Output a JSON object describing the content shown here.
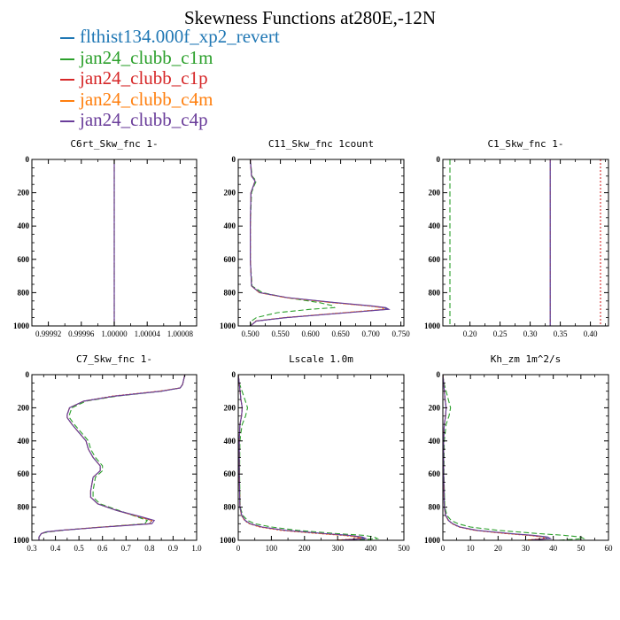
{
  "title": "Skewness Functions at280E,-12N",
  "legend": [
    {
      "name": "flthist134.000f_xp2_revert",
      "color": "#1f77b4"
    },
    {
      "name": "jan24_clubb_c1m",
      "color": "#2ca02c"
    },
    {
      "name": "jan24_clubb_c1p",
      "color": "#d62728"
    },
    {
      "name": "jan24_clubb_c4m",
      "color": "#ff7f0e"
    },
    {
      "name": "jan24_clubb_c4p",
      "color": "#6a3d9a"
    }
  ],
  "chart_data": [
    {
      "type": "line",
      "title": "C6rt_Skw_fnc   1-",
      "xlim": [
        0.9999,
        1.0001
      ],
      "xticks": [
        "0.99992",
        "0.99996",
        "1.00000",
        "1.00004",
        "1.00008"
      ],
      "xtick_values": [
        0.99992,
        0.99996,
        1.0,
        1.00004,
        1.00008
      ],
      "ylim": [
        0,
        1000
      ],
      "y_reversed": true,
      "yticks": [
        0,
        200,
        400,
        600,
        800,
        1000
      ],
      "y": [
        0,
        1000
      ],
      "series": [
        {
          "values": [
            1.0,
            1.0
          ]
        },
        {
          "values": [
            1.0,
            1.0
          ]
        },
        {
          "values": [
            1.0,
            1.0
          ]
        },
        {
          "values": [
            1.0,
            1.0
          ]
        },
        {
          "values": [
            1.0,
            1.0
          ]
        }
      ]
    },
    {
      "type": "line",
      "title": "C11_Skw_fnc   1count",
      "xlim": [
        0.48,
        0.755
      ],
      "xticks": [
        "0.500",
        "0.550",
        "0.600",
        "0.650",
        "0.700",
        "0.750"
      ],
      "xtick_values": [
        0.5,
        0.55,
        0.6,
        0.65,
        0.7,
        0.75
      ],
      "ylim": [
        0,
        1000
      ],
      "y_reversed": true,
      "yticks": [
        0,
        200,
        400,
        600,
        800,
        1000
      ],
      "y": [
        0,
        100,
        130,
        160,
        200,
        400,
        600,
        760,
        800,
        830,
        860,
        880,
        890,
        900,
        920,
        950,
        970,
        1000
      ],
      "series": [
        {
          "values": [
            0.5,
            0.502,
            0.508,
            0.505,
            0.501,
            0.5,
            0.5,
            0.502,
            0.515,
            0.56,
            0.64,
            0.7,
            0.722,
            0.728,
            0.66,
            0.56,
            0.51,
            0.5
          ]
        },
        {
          "values": [
            0.5,
            0.503,
            0.51,
            0.506,
            0.502,
            0.5,
            0.5,
            0.503,
            0.52,
            0.56,
            0.615,
            0.638,
            0.64,
            0.6,
            0.545,
            0.51,
            0.502,
            0.5
          ]
        },
        {
          "values": [
            0.5,
            0.502,
            0.508,
            0.505,
            0.501,
            0.5,
            0.5,
            0.502,
            0.515,
            0.56,
            0.638,
            0.698,
            0.72,
            0.725,
            0.658,
            0.558,
            0.51,
            0.5
          ]
        },
        {
          "values": [
            0.5,
            0.502,
            0.508,
            0.505,
            0.501,
            0.5,
            0.5,
            0.502,
            0.515,
            0.558,
            0.635,
            0.696,
            0.718,
            0.722,
            0.655,
            0.556,
            0.509,
            0.5
          ]
        },
        {
          "values": [
            0.5,
            0.502,
            0.508,
            0.505,
            0.501,
            0.5,
            0.5,
            0.502,
            0.516,
            0.562,
            0.642,
            0.703,
            0.725,
            0.73,
            0.662,
            0.56,
            0.51,
            0.5
          ]
        }
      ]
    },
    {
      "type": "line",
      "title": "C1_Skw_fnc   1-",
      "xlim": [
        0.155,
        0.43
      ],
      "xticks": [
        "0.20",
        "0.25",
        "0.30",
        "0.35",
        "0.40"
      ],
      "xtick_values": [
        0.2,
        0.25,
        0.3,
        0.35,
        0.4
      ],
      "ylim": [
        0,
        1000
      ],
      "y_reversed": true,
      "yticks": [
        0,
        200,
        400,
        600,
        800,
        1000
      ],
      "y": [
        0,
        1000
      ],
      "series": [
        {
          "values": [
            0.3333,
            0.3333
          ]
        },
        {
          "values": [
            0.1667,
            0.1667
          ]
        },
        {
          "values": [
            0.4167,
            0.4167
          ]
        },
        {
          "values": [
            0.3333,
            0.3333
          ]
        },
        {
          "values": [
            0.3333,
            0.3333
          ]
        }
      ]
    },
    {
      "type": "line",
      "title": "C7_Skw_fnc   1-",
      "xlim": [
        0.3,
        1.0
      ],
      "xticks": [
        "0.3",
        "0.4",
        "0.5",
        "0.6",
        "0.7",
        "0.8",
        "0.9",
        "1.0"
      ],
      "xtick_values": [
        0.3,
        0.4,
        0.5,
        0.6,
        0.7,
        0.8,
        0.9,
        1.0
      ],
      "ylim": [
        0,
        1000
      ],
      "y_reversed": true,
      "yticks": [
        0,
        200,
        400,
        600,
        800,
        1000
      ],
      "y": [
        0,
        60,
        80,
        100,
        130,
        160,
        200,
        240,
        260,
        300,
        350,
        400,
        450,
        500,
        550,
        580,
        620,
        700,
        740,
        780,
        820,
        860,
        880,
        900,
        920,
        940,
        950,
        960,
        980,
        1000
      ],
      "series": [
        {
          "values": [
            0.95,
            0.94,
            0.93,
            0.85,
            0.65,
            0.52,
            0.46,
            0.45,
            0.45,
            0.47,
            0.5,
            0.53,
            0.54,
            0.56,
            0.59,
            0.59,
            0.56,
            0.55,
            0.55,
            0.58,
            0.66,
            0.76,
            0.81,
            0.8,
            0.6,
            0.42,
            0.36,
            0.34,
            0.33,
            0.33
          ]
        },
        {
          "values": [
            0.95,
            0.94,
            0.93,
            0.85,
            0.66,
            0.53,
            0.47,
            0.46,
            0.46,
            0.48,
            0.51,
            0.54,
            0.55,
            0.57,
            0.6,
            0.6,
            0.57,
            0.56,
            0.56,
            0.59,
            0.67,
            0.75,
            0.79,
            0.78,
            0.6,
            0.43,
            0.37,
            0.34,
            0.33,
            0.33
          ]
        },
        {
          "values": [
            0.95,
            0.94,
            0.93,
            0.84,
            0.64,
            0.52,
            0.46,
            0.45,
            0.45,
            0.47,
            0.5,
            0.53,
            0.54,
            0.56,
            0.59,
            0.59,
            0.56,
            0.55,
            0.55,
            0.58,
            0.66,
            0.76,
            0.81,
            0.8,
            0.6,
            0.42,
            0.36,
            0.34,
            0.33,
            0.33
          ]
        },
        {
          "values": [
            0.95,
            0.94,
            0.93,
            0.84,
            0.65,
            0.52,
            0.46,
            0.45,
            0.45,
            0.47,
            0.5,
            0.53,
            0.54,
            0.56,
            0.59,
            0.59,
            0.56,
            0.55,
            0.55,
            0.58,
            0.66,
            0.76,
            0.81,
            0.8,
            0.6,
            0.42,
            0.36,
            0.34,
            0.33,
            0.33
          ]
        },
        {
          "values": [
            0.95,
            0.94,
            0.93,
            0.85,
            0.65,
            0.52,
            0.46,
            0.45,
            0.45,
            0.47,
            0.5,
            0.53,
            0.54,
            0.56,
            0.59,
            0.59,
            0.56,
            0.55,
            0.55,
            0.58,
            0.66,
            0.77,
            0.82,
            0.81,
            0.61,
            0.42,
            0.36,
            0.34,
            0.33,
            0.33
          ]
        }
      ]
    },
    {
      "type": "line",
      "title": "Lscale   1.0m",
      "xlim": [
        0,
        500
      ],
      "xticks": [
        "0",
        "100",
        "200",
        "300",
        "400",
        "500"
      ],
      "xtick_values": [
        0,
        100,
        200,
        300,
        400,
        500
      ],
      "ylim": [
        0,
        1000
      ],
      "y_reversed": true,
      "yticks": [
        0,
        200,
        400,
        600,
        800,
        1000
      ],
      "y": [
        0,
        50,
        150,
        200,
        250,
        300,
        350,
        400,
        600,
        800,
        850,
        880,
        900,
        920,
        940,
        960,
        970,
        980,
        990,
        1000
      ],
      "series": [
        {
          "values": [
            0,
            3,
            8,
            12,
            10,
            5,
            4,
            3,
            3,
            5,
            10,
            20,
            35,
            70,
            140,
            260,
            330,
            370,
            380,
            300
          ]
        },
        {
          "values": [
            0,
            3,
            20,
            28,
            22,
            12,
            8,
            5,
            4,
            6,
            14,
            28,
            50,
            100,
            180,
            300,
            380,
            410,
            420,
            350
          ]
        },
        {
          "values": [
            0,
            3,
            8,
            12,
            10,
            5,
            4,
            3,
            3,
            5,
            10,
            19,
            33,
            65,
            130,
            245,
            315,
            355,
            370,
            290
          ]
        },
        {
          "values": [
            0,
            3,
            8,
            12,
            10,
            5,
            4,
            3,
            3,
            5,
            10,
            20,
            34,
            68,
            135,
            250,
            320,
            360,
            375,
            295
          ]
        },
        {
          "values": [
            0,
            3,
            8,
            12,
            10,
            5,
            4,
            3,
            3,
            5,
            11,
            21,
            36,
            72,
            145,
            265,
            335,
            375,
            385,
            305
          ]
        }
      ]
    },
    {
      "type": "line",
      "title": "Kh_zm   1m^2/s",
      "xlim": [
        0,
        60
      ],
      "xticks": [
        "0",
        "10",
        "20",
        "30",
        "40",
        "50",
        "60"
      ],
      "xtick_values": [
        0,
        10,
        20,
        30,
        40,
        50,
        60
      ],
      "ylim": [
        0,
        1000
      ],
      "y_reversed": true,
      "yticks": [
        0,
        200,
        400,
        600,
        800,
        1000
      ],
      "y": [
        0,
        50,
        150,
        200,
        250,
        300,
        400,
        600,
        800,
        850,
        880,
        900,
        920,
        940,
        960,
        970,
        980,
        990,
        1000
      ],
      "series": [
        {
          "values": [
            0,
            0.3,
            0.8,
            1.2,
            1.0,
            0.5,
            0.3,
            0.3,
            0.5,
            1.0,
            2.0,
            3.5,
            6,
            12,
            24,
            32,
            37,
            38,
            30
          ]
        },
        {
          "values": [
            0,
            0.4,
            2.0,
            2.8,
            2.2,
            1.2,
            0.5,
            0.4,
            0.7,
            1.5,
            3.0,
            5.5,
            10,
            20,
            35,
            44,
            50,
            51,
            42
          ]
        },
        {
          "values": [
            0,
            0.3,
            0.8,
            1.2,
            1.0,
            0.5,
            0.3,
            0.3,
            0.5,
            1.0,
            2.0,
            3.3,
            5.8,
            11.5,
            23,
            31,
            36,
            37,
            29
          ]
        },
        {
          "values": [
            0,
            0.3,
            0.8,
            1.2,
            1.0,
            0.5,
            0.3,
            0.3,
            0.5,
            1.0,
            2.0,
            3.4,
            6,
            12,
            23.5,
            31.5,
            36.5,
            37.5,
            29.5
          ]
        },
        {
          "values": [
            0,
            0.3,
            0.8,
            1.2,
            1.0,
            0.5,
            0.3,
            0.3,
            0.5,
            1.1,
            2.1,
            3.6,
            6.2,
            12.5,
            25,
            33,
            38,
            39,
            31
          ]
        }
      ]
    }
  ]
}
